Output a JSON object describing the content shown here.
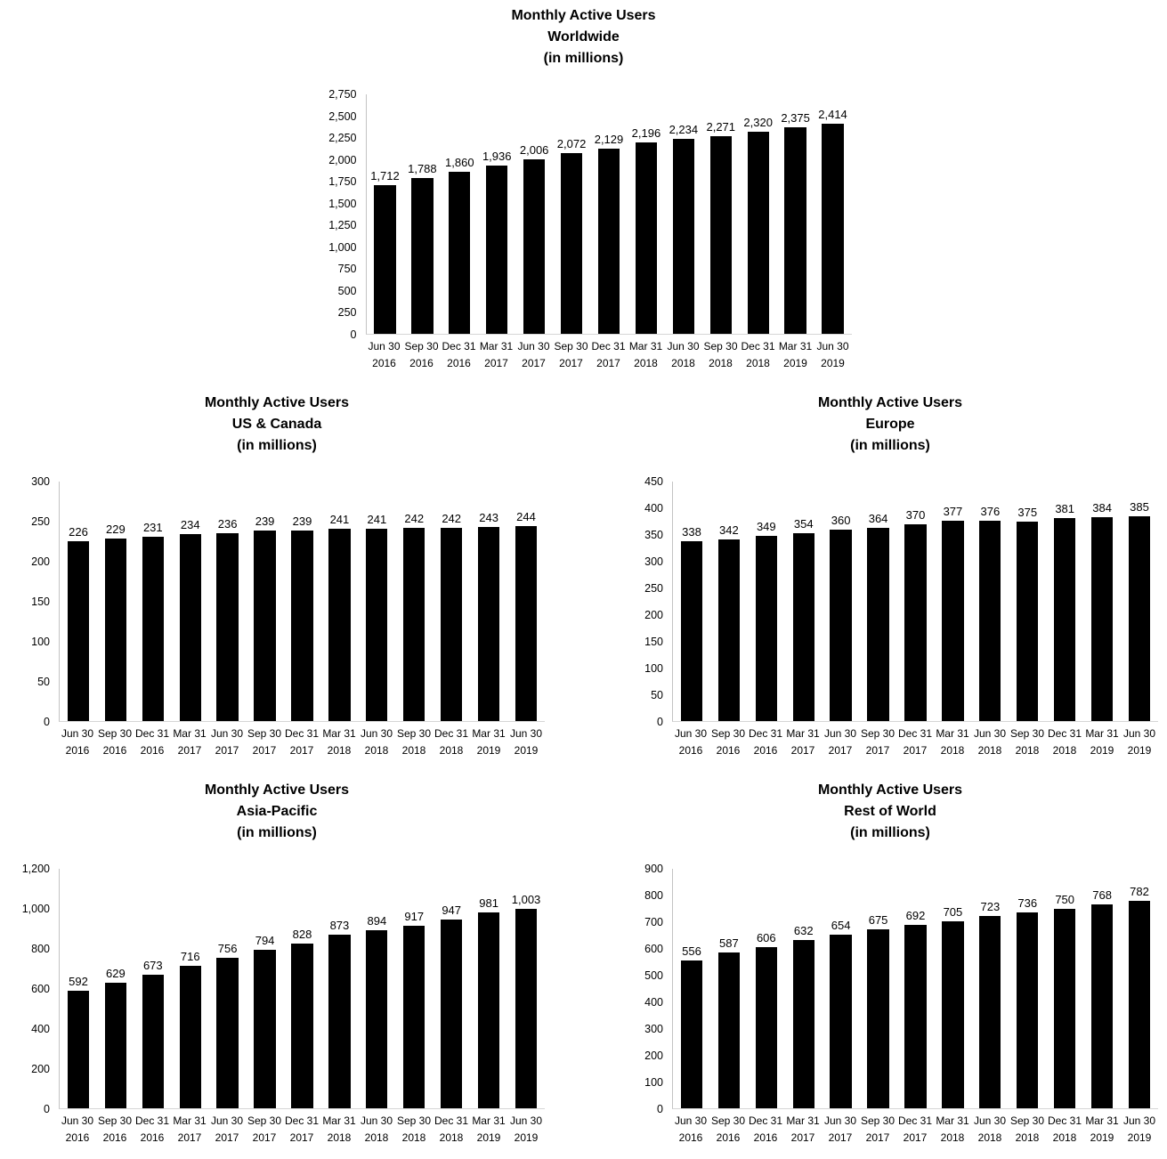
{
  "colors": {
    "bar_fill": "#000000",
    "axis_line": "#c3c3c3",
    "baseline": "#d6d6d6",
    "text": "#000000",
    "background": "#ffffff"
  },
  "chart_data": [
    {
      "type": "bar",
      "title_lines": [
        "Monthly Active Users",
        "Worldwide",
        "(in millions)"
      ],
      "ylim": [
        0,
        2750
      ],
      "yticks": [
        "2,750",
        "2,500",
        "2,250",
        "2,000",
        "1,750",
        "1,500",
        "1,250",
        "1,000",
        "750",
        "500",
        "250",
        "0"
      ],
      "categories": [
        [
          "Jun 30",
          "2016"
        ],
        [
          "Sep 30",
          "2016"
        ],
        [
          "Dec 31",
          "2016"
        ],
        [
          "Mar 31",
          "2017"
        ],
        [
          "Jun 30",
          "2017"
        ],
        [
          "Sep 30",
          "2017"
        ],
        [
          "Dec 31",
          "2017"
        ],
        [
          "Mar 31",
          "2018"
        ],
        [
          "Jun 30",
          "2018"
        ],
        [
          "Sep 30",
          "2018"
        ],
        [
          "Dec 31",
          "2018"
        ],
        [
          "Mar 31",
          "2019"
        ],
        [
          "Jun 30",
          "2019"
        ]
      ],
      "values": [
        1712,
        1788,
        1860,
        1936,
        2006,
        2072,
        2129,
        2196,
        2234,
        2271,
        2320,
        2375,
        2414
      ],
      "labels": [
        "1,712",
        "1,788",
        "1,860",
        "1,936",
        "2,006",
        "2,072",
        "2,129",
        "2,196",
        "2,234",
        "2,271",
        "2,320",
        "2,375",
        "2,414"
      ],
      "grid": false,
      "legend": "none"
    },
    {
      "type": "bar",
      "title_lines": [
        "Monthly Active Users",
        "US & Canada",
        "(in millions)"
      ],
      "ylim": [
        0,
        300
      ],
      "yticks": [
        "300",
        "250",
        "200",
        "150",
        "100",
        "50",
        "0"
      ],
      "categories": [
        [
          "Jun 30",
          "2016"
        ],
        [
          "Sep 30",
          "2016"
        ],
        [
          "Dec 31",
          "2016"
        ],
        [
          "Mar 31",
          "2017"
        ],
        [
          "Jun 30",
          "2017"
        ],
        [
          "Sep 30",
          "2017"
        ],
        [
          "Dec 31",
          "2017"
        ],
        [
          "Mar 31",
          "2018"
        ],
        [
          "Jun 30",
          "2018"
        ],
        [
          "Sep 30",
          "2018"
        ],
        [
          "Dec 31",
          "2018"
        ],
        [
          "Mar 31",
          "2019"
        ],
        [
          "Jun 30",
          "2019"
        ]
      ],
      "values": [
        226,
        229,
        231,
        234,
        236,
        239,
        239,
        241,
        241,
        242,
        242,
        243,
        244
      ],
      "labels": [
        "226",
        "229",
        "231",
        "234",
        "236",
        "239",
        "239",
        "241",
        "241",
        "242",
        "242",
        "243",
        "244"
      ],
      "grid": false,
      "legend": "none"
    },
    {
      "type": "bar",
      "title_lines": [
        "Monthly Active Users",
        "Europe",
        "(in millions)"
      ],
      "ylim": [
        0,
        450
      ],
      "yticks": [
        "450",
        "400",
        "350",
        "300",
        "250",
        "200",
        "150",
        "100",
        "50",
        "0"
      ],
      "categories": [
        [
          "Jun 30",
          "2016"
        ],
        [
          "Sep 30",
          "2016"
        ],
        [
          "Dec 31",
          "2016"
        ],
        [
          "Mar 31",
          "2017"
        ],
        [
          "Jun 30",
          "2017"
        ],
        [
          "Sep 30",
          "2017"
        ],
        [
          "Dec 31",
          "2017"
        ],
        [
          "Mar 31",
          "2018"
        ],
        [
          "Jun 30",
          "2018"
        ],
        [
          "Sep 30",
          "2018"
        ],
        [
          "Dec 31",
          "2018"
        ],
        [
          "Mar 31",
          "2019"
        ],
        [
          "Jun 30",
          "2019"
        ]
      ],
      "values": [
        338,
        342,
        349,
        354,
        360,
        364,
        370,
        377,
        376,
        375,
        381,
        384,
        385
      ],
      "labels": [
        "338",
        "342",
        "349",
        "354",
        "360",
        "364",
        "370",
        "377",
        "376",
        "375",
        "381",
        "384",
        "385"
      ],
      "grid": false,
      "legend": "none"
    },
    {
      "type": "bar",
      "title_lines": [
        "Monthly Active Users",
        "Asia-Pacific",
        "(in millions)"
      ],
      "ylim": [
        0,
        1200
      ],
      "yticks": [
        "1,200",
        "1,000",
        "800",
        "600",
        "400",
        "200",
        "0"
      ],
      "categories": [
        [
          "Jun 30",
          "2016"
        ],
        [
          "Sep 30",
          "2016"
        ],
        [
          "Dec 31",
          "2016"
        ],
        [
          "Mar 31",
          "2017"
        ],
        [
          "Jun 30",
          "2017"
        ],
        [
          "Sep 30",
          "2017"
        ],
        [
          "Dec 31",
          "2017"
        ],
        [
          "Mar 31",
          "2018"
        ],
        [
          "Jun 30",
          "2018"
        ],
        [
          "Sep 30",
          "2018"
        ],
        [
          "Dec 31",
          "2018"
        ],
        [
          "Mar 31",
          "2019"
        ],
        [
          "Jun 30",
          "2019"
        ]
      ],
      "values": [
        592,
        629,
        673,
        716,
        756,
        794,
        828,
        873,
        894,
        917,
        947,
        981,
        1003
      ],
      "labels": [
        "592",
        "629",
        "673",
        "716",
        "756",
        "794",
        "828",
        "873",
        "894",
        "917",
        "947",
        "981",
        "1,003"
      ],
      "grid": false,
      "legend": "none"
    },
    {
      "type": "bar",
      "title_lines": [
        "Monthly Active Users",
        "Rest of World",
        "(in millions)"
      ],
      "ylim": [
        0,
        900
      ],
      "yticks": [
        "900",
        "800",
        "700",
        "600",
        "500",
        "400",
        "300",
        "200",
        "100",
        "0"
      ],
      "categories": [
        [
          "Jun 30",
          "2016"
        ],
        [
          "Sep 30",
          "2016"
        ],
        [
          "Dec 31",
          "2016"
        ],
        [
          "Mar 31",
          "2017"
        ],
        [
          "Jun 30",
          "2017"
        ],
        [
          "Sep 30",
          "2017"
        ],
        [
          "Dec 31",
          "2017"
        ],
        [
          "Mar 31",
          "2018"
        ],
        [
          "Jun 30",
          "2018"
        ],
        [
          "Sep 30",
          "2018"
        ],
        [
          "Dec 31",
          "2018"
        ],
        [
          "Mar 31",
          "2019"
        ],
        [
          "Jun 30",
          "2019"
        ]
      ],
      "values": [
        556,
        587,
        606,
        632,
        654,
        675,
        692,
        705,
        723,
        736,
        750,
        768,
        782
      ],
      "labels": [
        "556",
        "587",
        "606",
        "632",
        "654",
        "675",
        "692",
        "705",
        "723",
        "736",
        "750",
        "768",
        "782"
      ],
      "grid": false,
      "legend": "none"
    }
  ]
}
